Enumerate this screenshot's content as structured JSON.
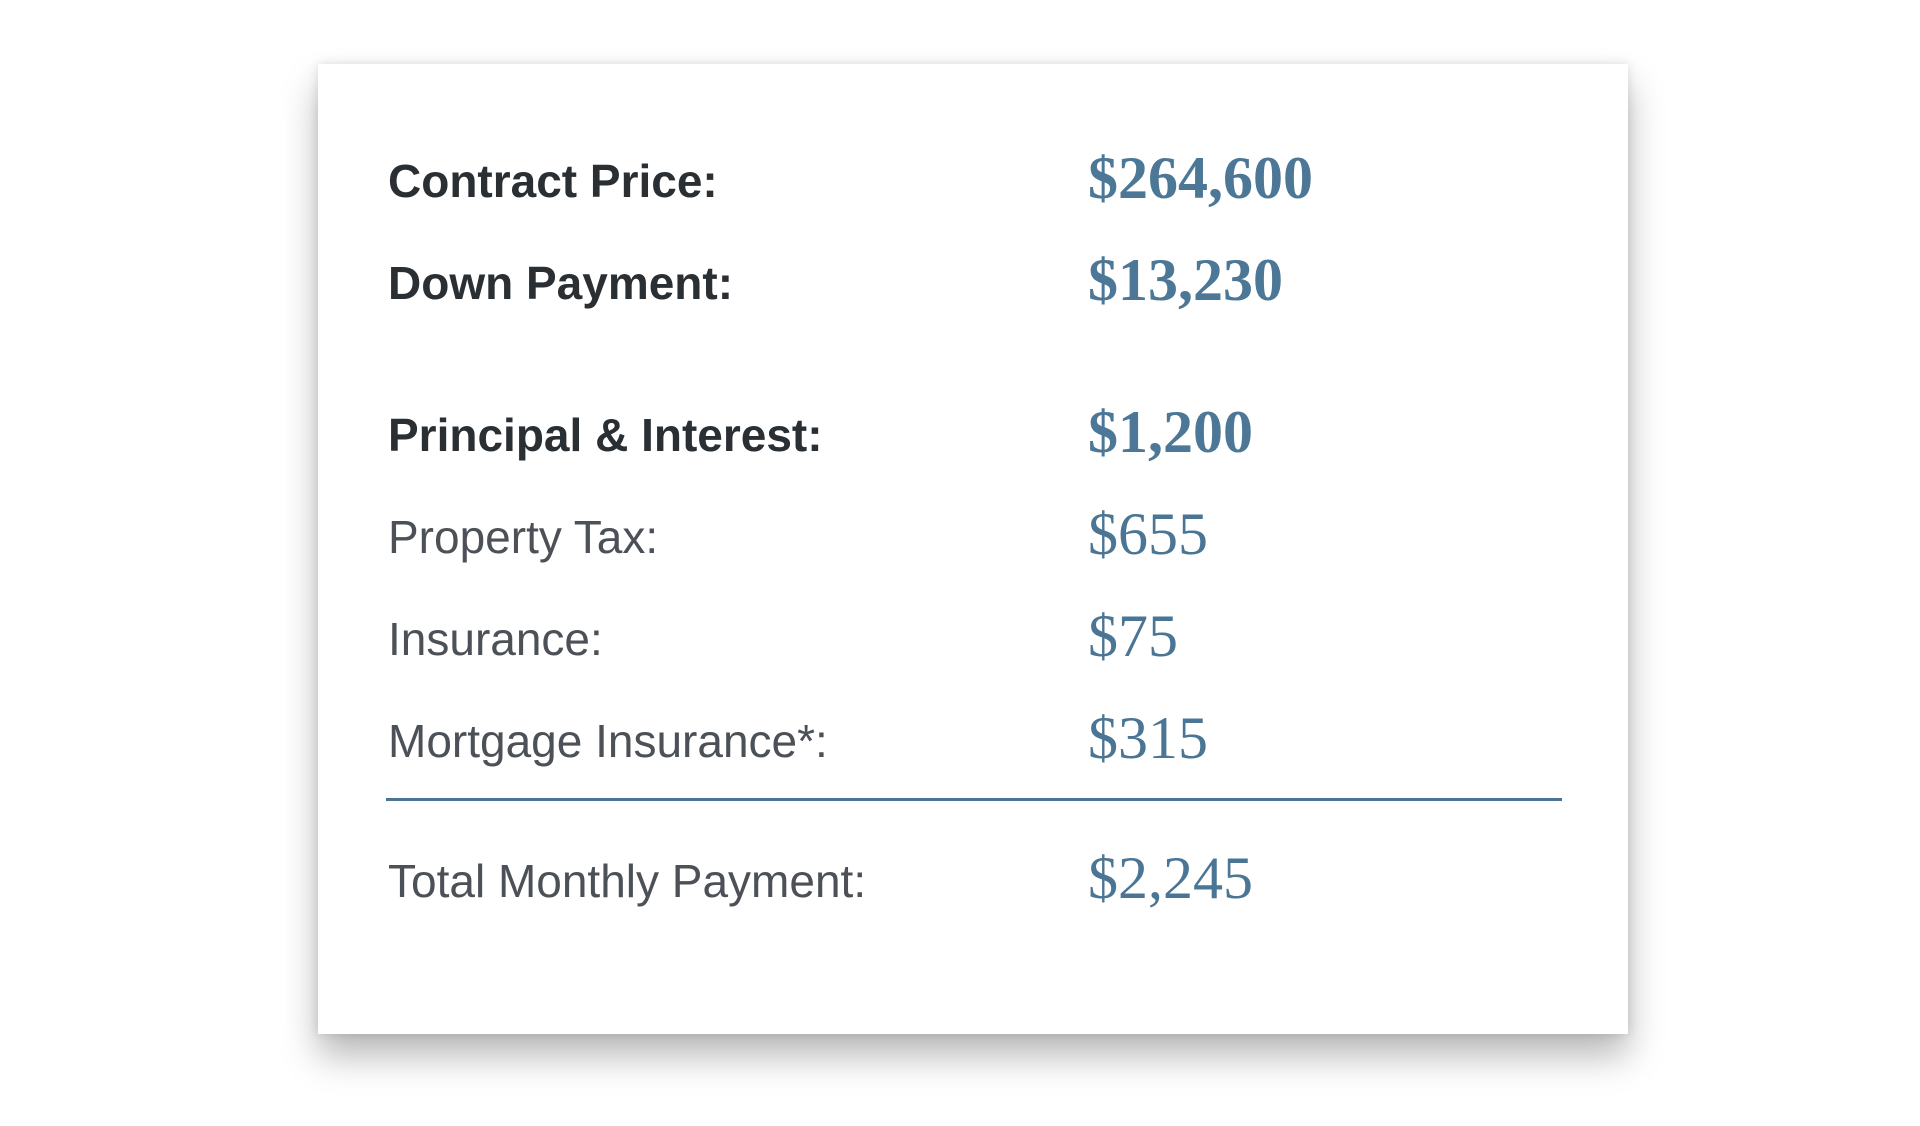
{
  "summary": {
    "contract_price": {
      "label": "Contract Price:",
      "value": "$264,600"
    },
    "down_payment": {
      "label": "Down Payment:",
      "value": "$13,230"
    },
    "principal_interest": {
      "label": "Principal & Interest:",
      "value": "$1,200"
    },
    "property_tax": {
      "label": "Property Tax:",
      "value": "$655"
    },
    "insurance": {
      "label": "Insurance:",
      "value": "$75"
    },
    "mortgage_insurance": {
      "label": "Mortgage Insurance*:",
      "value": "$315"
    },
    "total_monthly": {
      "label": "Total Monthly Payment:",
      "value": "$2,245"
    }
  },
  "colors": {
    "label_dark": "#2a2f34",
    "value_blue": "#4b7594",
    "divider": "#4b7594"
  }
}
